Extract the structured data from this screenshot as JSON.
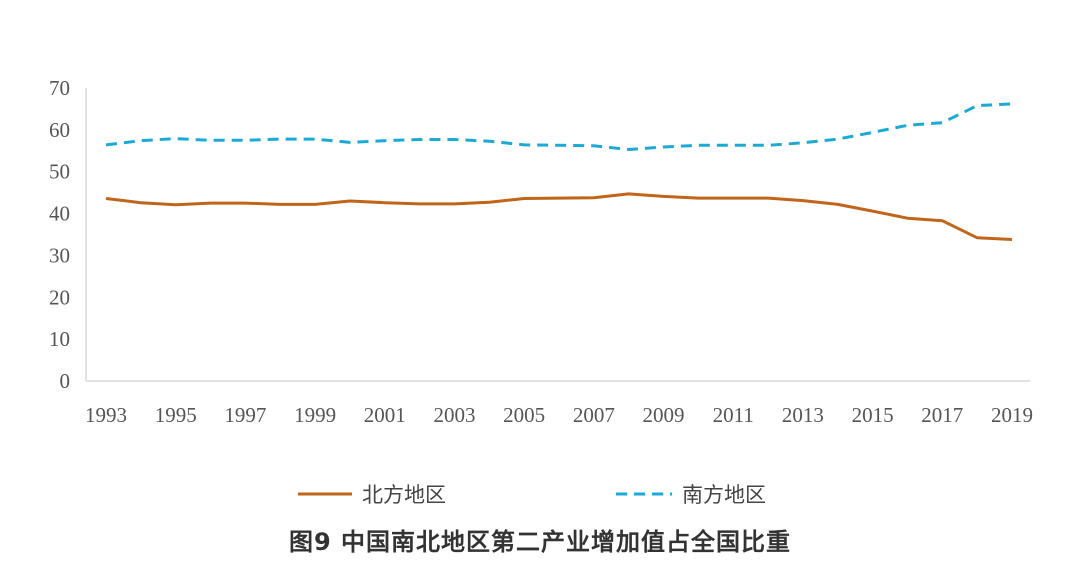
{
  "caption": "图9  中国南北地区第二产业增加值占全国比重",
  "chart_data": {
    "type": "line",
    "title": "图9  中国南北地区第二产业增加值占全国比重",
    "xlabel": "",
    "ylabel": "",
    "ylim": [
      0,
      70
    ],
    "yticks": [
      0,
      10,
      20,
      30,
      40,
      50,
      60,
      70
    ],
    "x": [
      1993,
      1994,
      1995,
      1996,
      1997,
      1998,
      1999,
      2000,
      2001,
      2002,
      2003,
      2004,
      2005,
      2006,
      2007,
      2008,
      2009,
      2010,
      2011,
      2012,
      2013,
      2014,
      2015,
      2016,
      2017,
      2018,
      2019
    ],
    "xtick_labels": [
      "1993",
      "1995",
      "1997",
      "1999",
      "2001",
      "2003",
      "2005",
      "2007",
      "2009",
      "2011",
      "2013",
      "2015",
      "2017",
      "2019"
    ],
    "grid": false,
    "legend_position": "bottom",
    "series": [
      {
        "name": "北方地区",
        "color": "#C0651A",
        "dash": "solid",
        "values": [
          43.6,
          42.6,
          42.1,
          42.5,
          42.5,
          42.2,
          42.2,
          43.0,
          42.6,
          42.3,
          42.3,
          42.7,
          43.6,
          43.7,
          43.8,
          44.7,
          44.1,
          43.7,
          43.7,
          43.7,
          43.1,
          42.2,
          40.6,
          38.9,
          38.3,
          34.2,
          33.8
        ]
      },
      {
        "name": "南方地区",
        "color": "#1BAAD6",
        "dash": "dashed",
        "values": [
          56.4,
          57.4,
          57.9,
          57.5,
          57.5,
          57.8,
          57.8,
          57.0,
          57.4,
          57.7,
          57.7,
          57.3,
          56.4,
          56.3,
          56.2,
          55.3,
          55.9,
          56.3,
          56.3,
          56.3,
          56.9,
          57.8,
          59.4,
          61.1,
          61.7,
          65.8,
          66.2
        ]
      }
    ]
  }
}
